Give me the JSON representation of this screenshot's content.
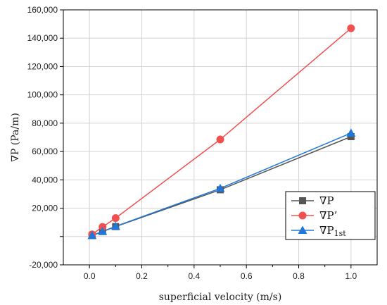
{
  "chart_data": {
    "type": "line",
    "xlabel": "superficial velocity (m/s)",
    "ylabel": "∇P (Pa/m)",
    "xlim": [
      -0.1,
      1.1
    ],
    "ylim": [
      -20000,
      160000
    ],
    "x_ticks": [
      0.0,
      0.2,
      0.4,
      0.6,
      0.8,
      1.0
    ],
    "x_tick_labels": [
      "0.0",
      "0.2",
      "0.4",
      "0.6",
      "0.8",
      "1.0"
    ],
    "y_ticks": [
      -20000,
      20000,
      40000,
      60000,
      80000,
      100000,
      120000,
      140000,
      160000
    ],
    "y_tick_labels": [
      "-20,000",
      "20,000",
      "40,000",
      "60,000",
      "80,000",
      "100,000",
      "120,000",
      "140,000",
      "160,000"
    ],
    "grid": true,
    "legend_position": "bottom-right",
    "series": [
      {
        "name": "∇P",
        "legend_main": "∇P",
        "legend_sub": "",
        "color": "#555555",
        "marker": "square",
        "x": [
          0.01,
          0.05,
          0.1,
          0.5,
          1.0
        ],
        "y": [
          700,
          3500,
          7000,
          33000,
          70500
        ]
      },
      {
        "name": "∇P’",
        "legend_main": "∇P’",
        "legend_sub": "",
        "color": "#f05050",
        "marker": "circle",
        "x": [
          0.01,
          0.05,
          0.1,
          0.5,
          1.0
        ],
        "y": [
          1500,
          6800,
          13000,
          68500,
          147000
        ]
      },
      {
        "name": "∇P1st",
        "legend_main": "∇P",
        "legend_sub": "1st",
        "color": "#1f78d8",
        "marker": "triangle",
        "x": [
          0.01,
          0.05,
          0.1,
          0.5,
          1.0
        ],
        "y": [
          700,
          3600,
          7200,
          34000,
          73000
        ]
      }
    ]
  }
}
